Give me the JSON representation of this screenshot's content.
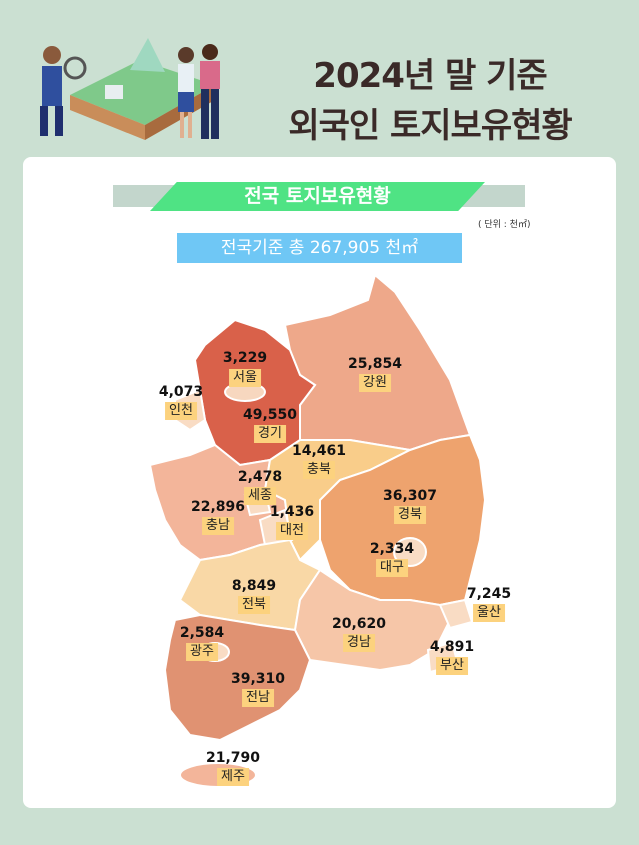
{
  "title": {
    "line1": "2024년 말 기준",
    "line2": "외국인 토지보유현황"
  },
  "section_title": "전국 토지보유현황",
  "unit": "( 단위 : 천㎡)",
  "total": "전국기준 총 267,905 천㎡",
  "colors": {
    "background": "#cbe0d2",
    "ribbon": "#4fe384",
    "total_box": "#6fc7f5",
    "label_bg": "#fcd27e"
  },
  "regions": [
    {
      "name": "서울",
      "value": "3,229"
    },
    {
      "name": "인천",
      "value": "4,073"
    },
    {
      "name": "경기",
      "value": "49,550"
    },
    {
      "name": "강원",
      "value": "25,854"
    },
    {
      "name": "충북",
      "value": "14,461"
    },
    {
      "name": "세종",
      "value": "2,478"
    },
    {
      "name": "충남",
      "value": "22,896"
    },
    {
      "name": "대전",
      "value": "1,436"
    },
    {
      "name": "경북",
      "value": "36,307"
    },
    {
      "name": "대구",
      "value": "2,334"
    },
    {
      "name": "전북",
      "value": "8,849"
    },
    {
      "name": "울산",
      "value": "7,245"
    },
    {
      "name": "경남",
      "value": "20,620"
    },
    {
      "name": "부산",
      "value": "4,891"
    },
    {
      "name": "광주",
      "value": "2,584"
    },
    {
      "name": "전남",
      "value": "39,310"
    },
    {
      "name": "제주",
      "value": "21,790"
    }
  ]
}
